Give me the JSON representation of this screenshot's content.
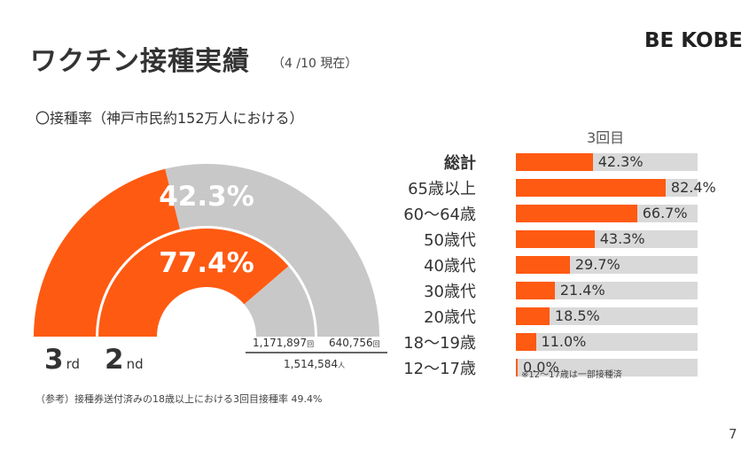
{
  "header": {
    "title": "ワクチン接種実績",
    "date": "（4 /10 現在）",
    "brand": "BE KOBE"
  },
  "colors": {
    "accent": "#ff5a12",
    "track": "#c8c8c8",
    "bar_track": "#d9d9d9"
  },
  "chart_data": [
    {
      "type": "pie",
      "title": "〇接種率（神戸市民約152万人における）",
      "rings": [
        {
          "name": "3rd",
          "label_main": "3",
          "label_suffix": "rd",
          "value": 42.3,
          "value_label": "42.3%",
          "count": "640,756",
          "count_unit": "回"
        },
        {
          "name": "2nd",
          "label_main": "2",
          "label_suffix": "nd",
          "value": 77.4,
          "value_label": "77.4%",
          "count": "1,171,897",
          "count_unit": "回"
        }
      ],
      "total": "1,514,584",
      "total_unit": "人",
      "note": "（参考）接種券送付済みの18歳以上における3回目接種率 49.4%"
    },
    {
      "type": "bar",
      "title": "3回目",
      "categories": [
        "総計",
        "65歳以上",
        "60～64歳",
        "50歳代",
        "40歳代",
        "30歳代",
        "20歳代",
        "18～19歳",
        "12～17歳"
      ],
      "values": [
        42.3,
        82.4,
        66.7,
        43.3,
        29.7,
        21.4,
        18.5,
        11.0,
        0.0
      ],
      "value_labels": [
        "42.3%",
        "82.4%",
        "66.7%",
        "43.3%",
        "29.7%",
        "21.4%",
        "18.5%",
        "11.0%",
        "0.0%"
      ],
      "xlim": [
        0,
        100
      ],
      "footnote": "※12～17歳は一部接種済"
    }
  ],
  "page_number": "7"
}
